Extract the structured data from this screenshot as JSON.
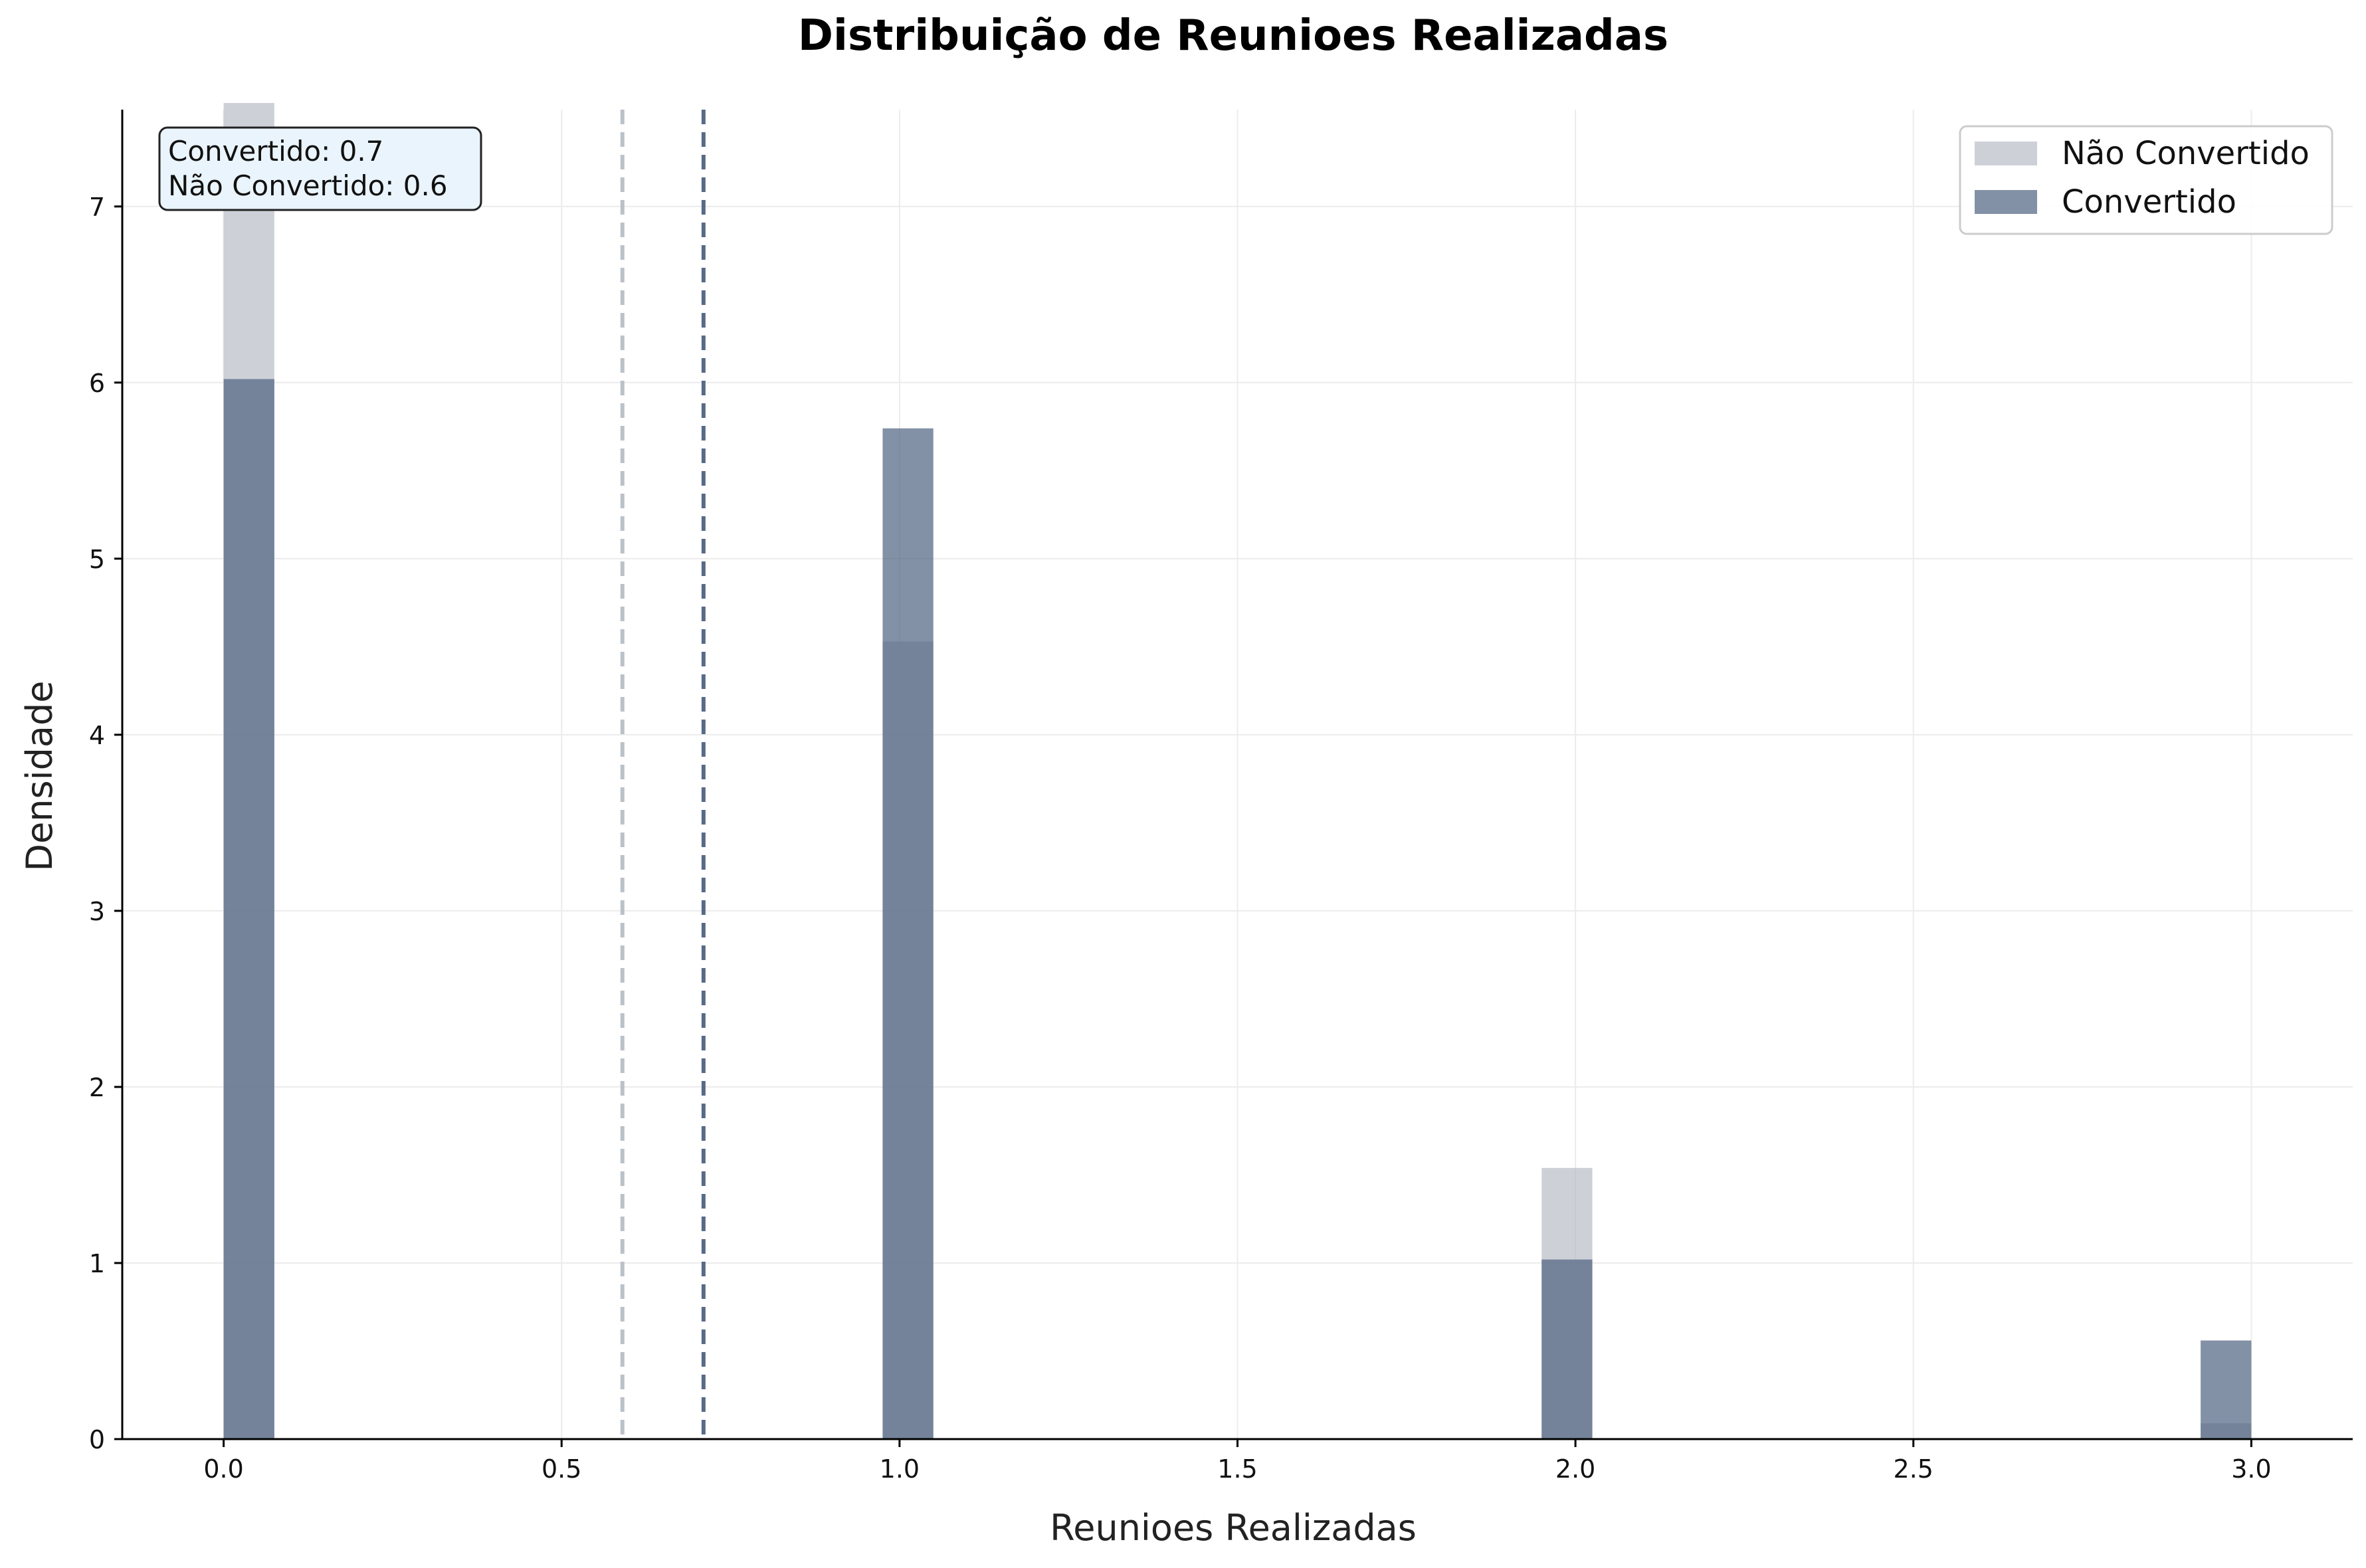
{
  "chart_data": {
    "type": "bar",
    "title": "Distribuição de Reunioes Realizadas",
    "xlabel": "Reunioes Realizadas",
    "ylabel": "Densidade",
    "xlim": [
      -0.15,
      3.15
    ],
    "ylim": [
      0,
      7.55
    ],
    "xticks": [
      0.0,
      0.5,
      1.0,
      1.5,
      2.0,
      2.5,
      3.0
    ],
    "xtick_labels": [
      "0.0",
      "0.5",
      "1.0",
      "1.5",
      "2.0",
      "2.5",
      "3.0"
    ],
    "yticks": [
      0,
      1,
      2,
      3,
      4,
      5,
      6,
      7
    ],
    "ytick_labels": [
      "0",
      "1",
      "2",
      "3",
      "4",
      "5",
      "6",
      "7"
    ],
    "bin_width": 0.075,
    "grid": true,
    "legend_position": "top-right",
    "series": [
      {
        "name": "Não Convertido",
        "color": "#b8bec6",
        "bins": [
          {
            "x": 0.0,
            "y": 7.6
          },
          {
            "x": 0.975,
            "y": 4.53
          },
          {
            "x": 1.95,
            "y": 1.54
          },
          {
            "x": 2.925,
            "y": 0.09
          }
        ],
        "mean": 0.59
      },
      {
        "name": "Convertido",
        "color": "#4f6380",
        "bins": [
          {
            "x": 0.0,
            "y": 6.02
          },
          {
            "x": 0.975,
            "y": 5.74
          },
          {
            "x": 1.95,
            "y": 1.02
          },
          {
            "x": 2.925,
            "y": 0.56
          }
        ],
        "mean": 0.71
      }
    ],
    "annotation": {
      "line1": "Convertido: 0.7",
      "line2": "Não Convertido: 0.6"
    }
  }
}
